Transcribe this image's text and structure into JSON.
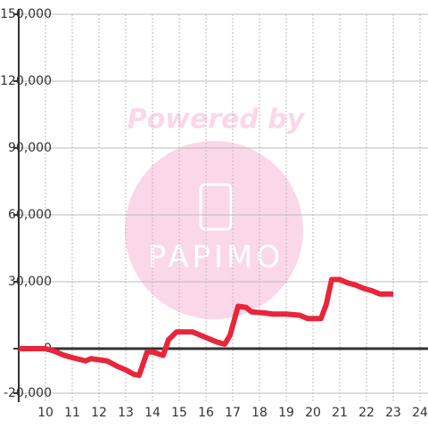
{
  "chart_data": {
    "type": "line",
    "watermark": {
      "title": "Powered by",
      "logo": "PAPIMO"
    },
    "x": [
      9.0,
      10.0,
      10.3,
      10.7,
      11.0,
      11.5,
      11.7,
      12.0,
      12.3,
      12.7,
      13.0,
      13.3,
      13.5,
      13.8,
      14.0,
      14.4,
      14.6,
      14.9,
      15.2,
      15.5,
      15.8,
      16.1,
      16.4,
      16.7,
      16.9,
      17.2,
      17.5,
      17.7,
      18.2,
      18.5,
      19.0,
      19.5,
      19.8,
      20.3,
      20.5,
      20.7,
      21.0,
      21.3,
      21.6,
      21.9,
      22.2,
      22.5,
      23.0
    ],
    "series": [
      {
        "color": "#e8253a",
        "values": [
          0,
          0,
          -1000,
          -3000,
          -4000,
          -5500,
          -4500,
          -5000,
          -5500,
          -8000,
          -9500,
          -11500,
          -12000,
          -1500,
          -1500,
          -3000,
          4000,
          7500,
          7500,
          7500,
          6000,
          4500,
          3000,
          2000,
          6000,
          19000,
          18500,
          16500,
          16000,
          15500,
          15500,
          15000,
          13500,
          13500,
          20000,
          31000,
          31000,
          29500,
          28500,
          27000,
          26000,
          24500,
          24500
        ]
      }
    ],
    "xlim": [
      9,
      24.3
    ],
    "xticks": [
      10,
      11,
      12,
      13,
      14,
      15,
      16,
      17,
      18,
      19,
      20,
      21,
      22,
      23,
      24
    ],
    "ylim": [
      -24000,
      150000
    ],
    "yticks": [
      {
        "value": -20000,
        "label": "-20,000"
      },
      0,
      {
        "value": 30000,
        "label": "30,000"
      },
      {
        "value": 60000,
        "label": "60,000"
      },
      {
        "value": 90000,
        "label": "90,000"
      },
      {
        "value": 120000,
        "label": "120,000"
      },
      {
        "value": 150000,
        "label": "150,000"
      }
    ],
    "grid": true
  }
}
